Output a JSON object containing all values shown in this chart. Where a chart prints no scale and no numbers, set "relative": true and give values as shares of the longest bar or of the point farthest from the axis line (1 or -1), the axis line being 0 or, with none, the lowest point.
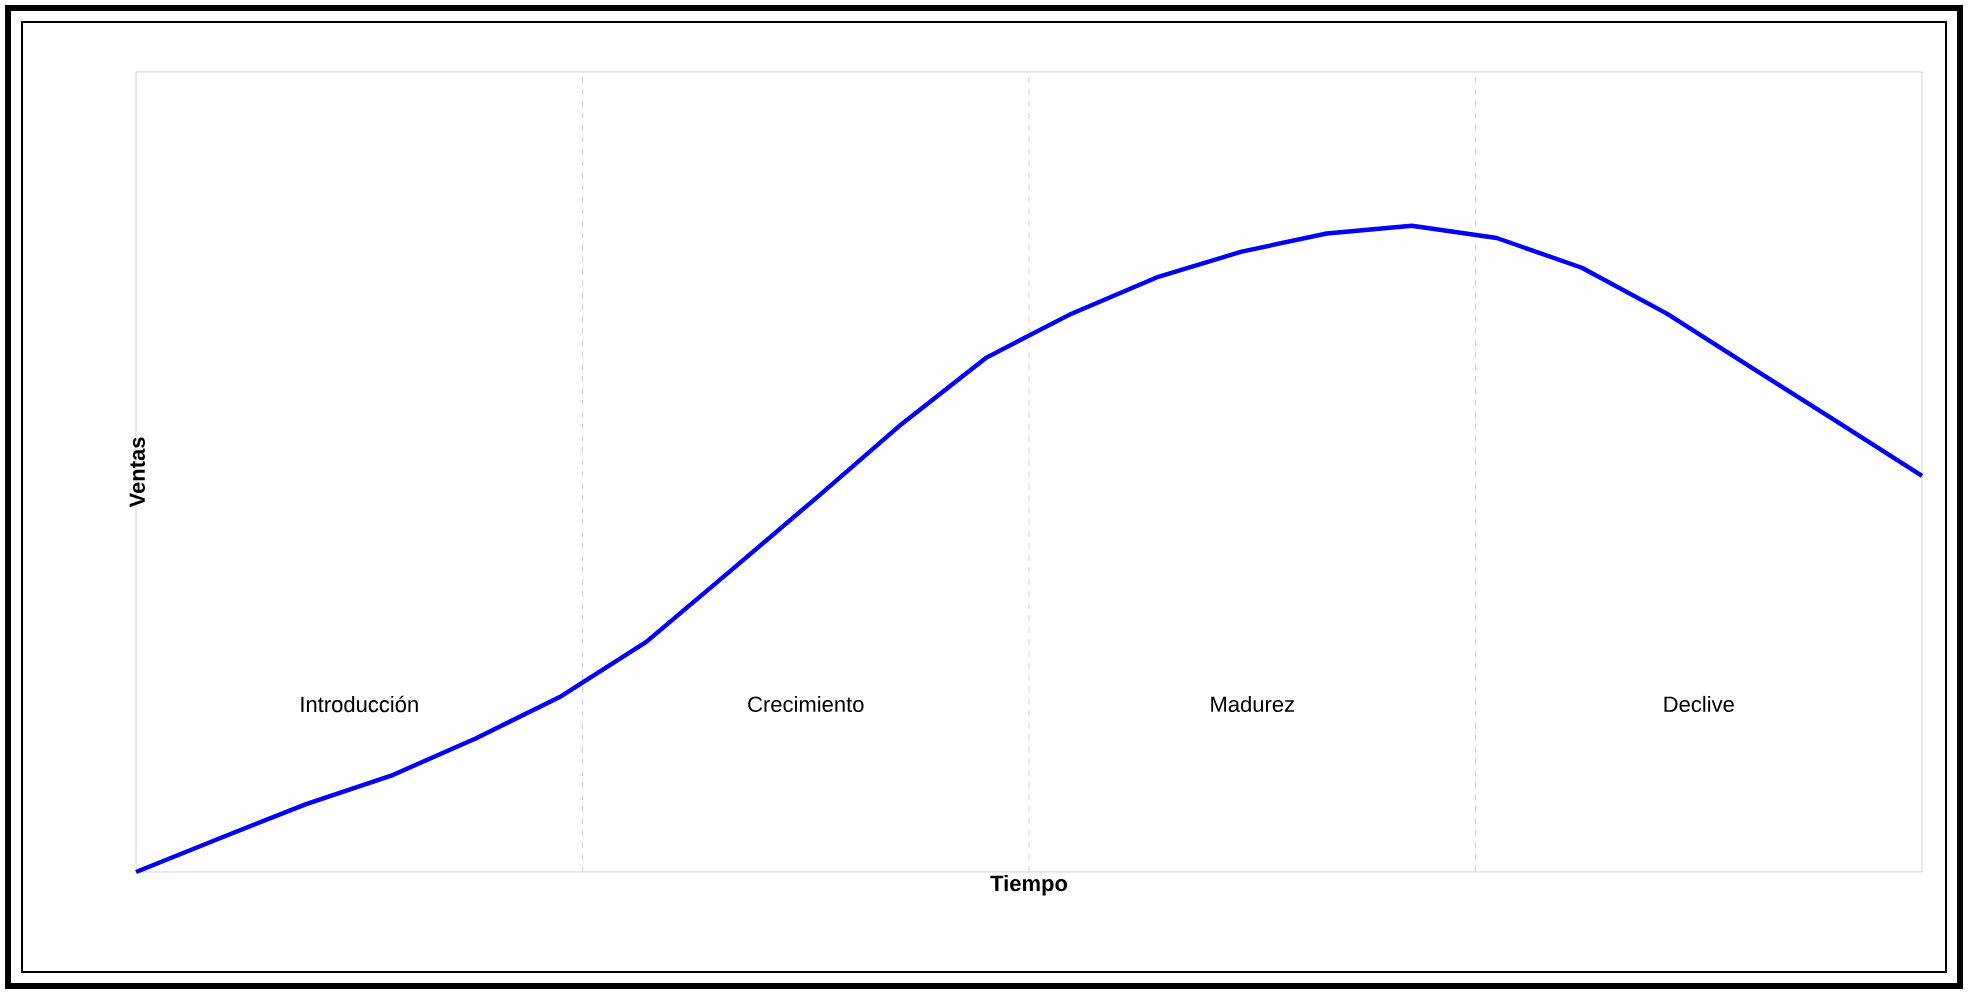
{
  "chart_data": {
    "type": "line",
    "relative": true,
    "xlabel": "Tiempo",
    "ylabel": "Ventas",
    "color": "#0000ff",
    "categories": [
      null,
      null,
      null,
      null,
      null,
      null,
      null,
      null,
      null,
      null,
      null,
      null,
      null,
      null,
      null,
      null,
      null,
      null,
      null,
      null,
      null,
      null
    ],
    "values": [
      0,
      0.053,
      0.105,
      0.149,
      0.207,
      0.272,
      0.356,
      0.467,
      0.579,
      0.693,
      0.796,
      0.864,
      0.92,
      0.96,
      0.988,
      1,
      0.981,
      0.935,
      0.864,
      0.78,
      0.697,
      0.613
    ],
    "annotations": [
      "Introducción",
      "Crecimiento",
      "Madurez",
      "Declive"
    ],
    "marker": "none",
    "line_style": "solid"
  }
}
